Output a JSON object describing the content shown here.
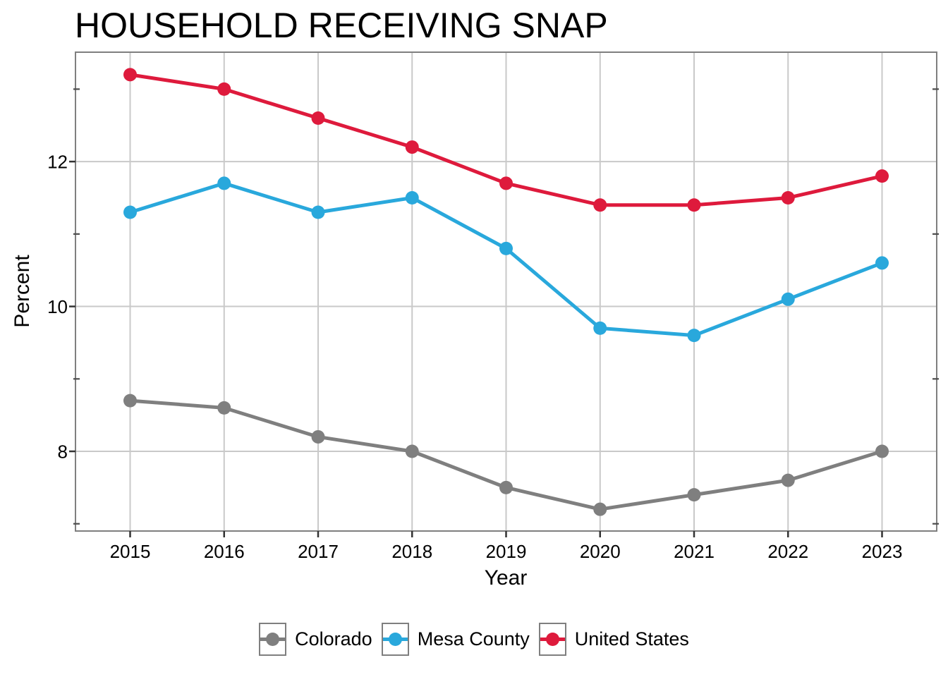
{
  "chart_data": {
    "type": "line",
    "title": "HOUSEHOLD RECEIVING SNAP",
    "xlabel": "Year",
    "ylabel": "Percent",
    "x": [
      2015,
      2016,
      2017,
      2018,
      2019,
      2020,
      2021,
      2022,
      2023
    ],
    "series": [
      {
        "name": "Colorado",
        "color": "#7F7F7F",
        "values": [
          8.7,
          8.6,
          8.2,
          8.0,
          7.5,
          7.2,
          7.4,
          7.6,
          8.0
        ]
      },
      {
        "name": "Mesa County",
        "color": "#29A8DC",
        "values": [
          11.3,
          11.7,
          11.3,
          11.5,
          10.8,
          9.7,
          9.6,
          10.1,
          10.6
        ]
      },
      {
        "name": "United States",
        "color": "#DE1A3C",
        "values": [
          13.2,
          13.0,
          12.6,
          12.2,
          11.7,
          11.4,
          11.4,
          11.5,
          11.8
        ]
      }
    ],
    "ylim": [
      6.9,
      13.51
    ],
    "yticks": [
      8,
      10,
      12
    ],
    "y_minor_ticks": [
      7,
      9,
      11,
      13
    ],
    "grid": true,
    "legend_position": "bottom"
  },
  "style": {
    "background": "#FFFFFF",
    "grid_color": "#C9C9C9",
    "panel_border_color": "#7F7F7F",
    "major_tick_color": "#333333",
    "minor_tick_color": "#4D4D4D",
    "text_color": "#000000"
  }
}
